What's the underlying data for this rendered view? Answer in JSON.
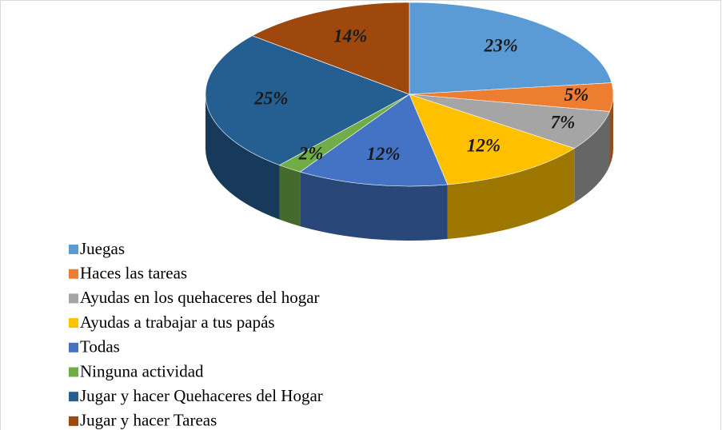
{
  "chart_data": {
    "type": "pie",
    "categories": [
      "Juegas",
      "Haces las tareas",
      "Ayudas en los quehaceres del hogar",
      "Ayudas a trabajar a tus papás",
      "Todas",
      "Ninguna actividad",
      "Jugar y hacer Quehaceres del Hogar",
      "Jugar y hacer Tareas"
    ],
    "values": [
      23,
      5,
      7,
      12,
      12,
      2,
      25,
      14
    ],
    "value_labels": [
      "23%",
      "5%",
      "7%",
      "12%",
      "12%",
      "2%",
      "25%",
      "14%"
    ],
    "colors": [
      "#5b9bd5",
      "#ed7d31",
      "#a5a5a5",
      "#ffc000",
      "#4472c4",
      "#70ad47",
      "#255e91",
      "#9e480e"
    ]
  }
}
